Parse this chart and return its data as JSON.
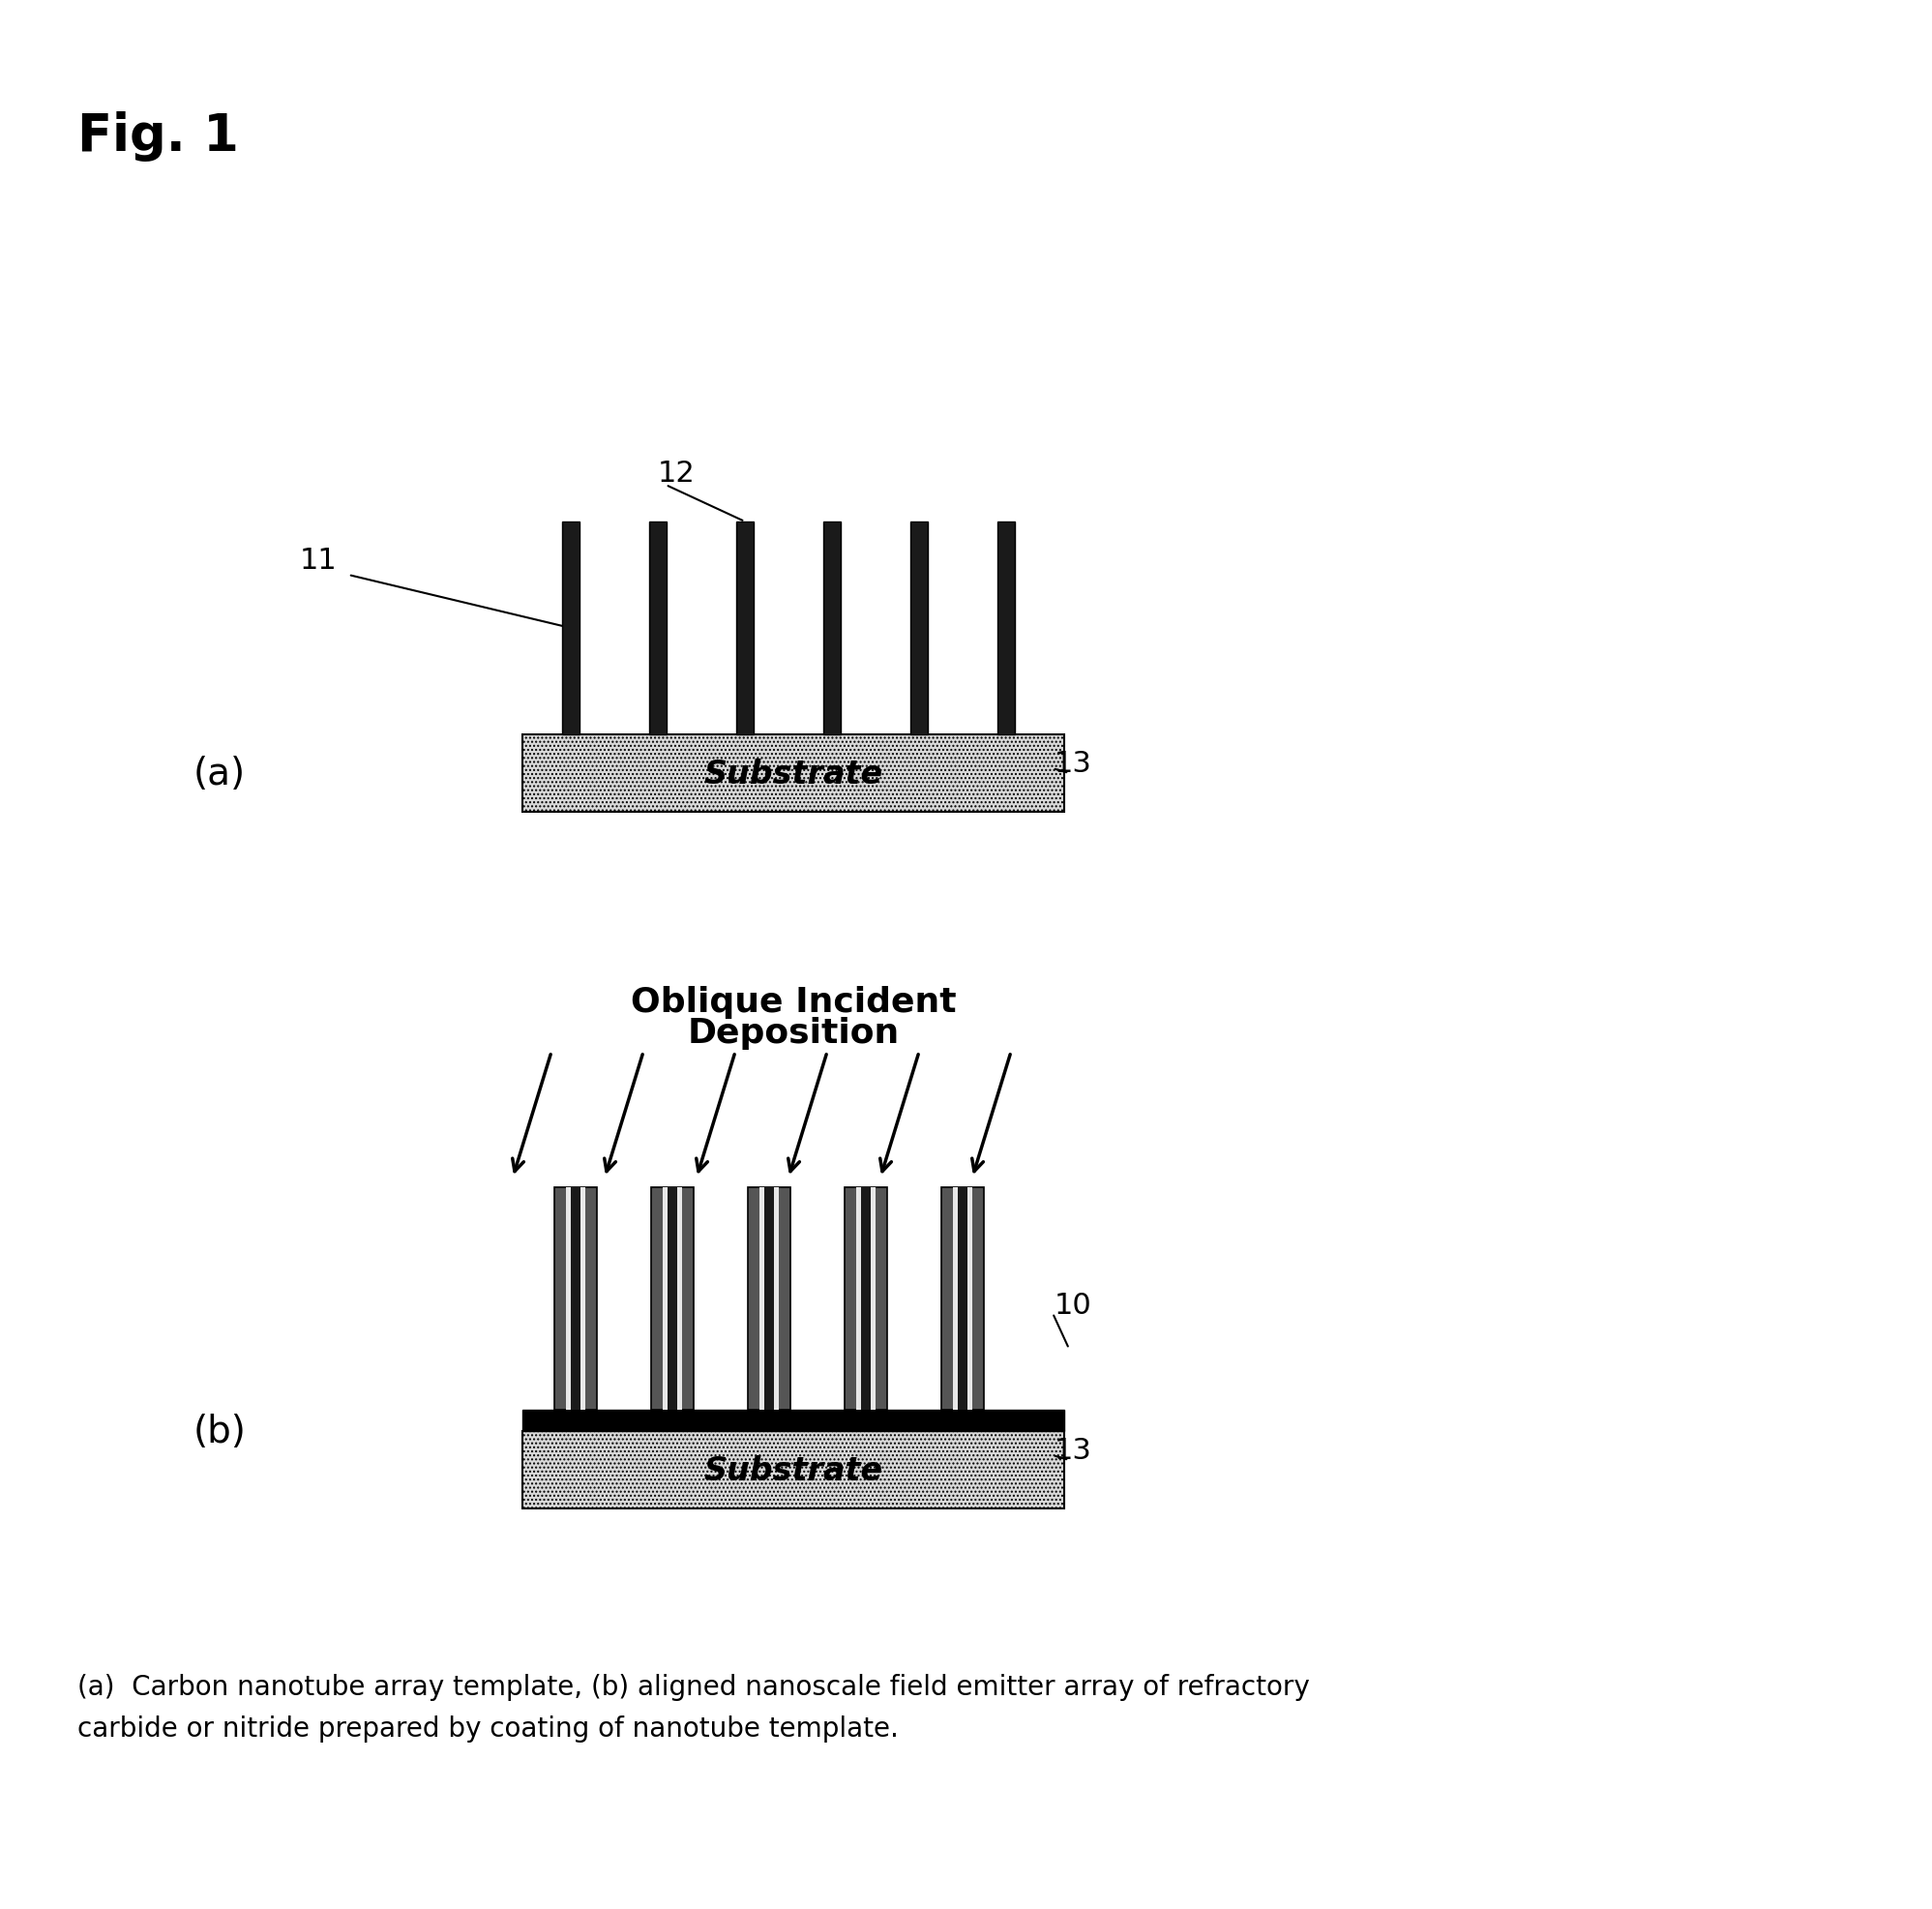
{
  "fig_title": "Fig. 1",
  "fig_label_a": "(a)",
  "fig_label_b": "(b)",
  "caption": "(a)  Carbon nanotube array template, (b) aligned nanoscale field emitter array of refractory\ncarbide or nitride prepared by coating of nanotube template.",
  "substrate_label": "Substrate",
  "oblique_label_line1": "Oblique Incident",
  "oblique_label_line2": "Deposition",
  "label_11": "11",
  "label_12": "12",
  "label_13_a": "13",
  "label_10": "10",
  "label_13_b": "13",
  "background_color": "#ffffff",
  "substrate_hatch": "....",
  "substrate_facecolor": "#d8d8d8",
  "nanotube_color": "#1a1a1a",
  "coating_outer_color": "#555555",
  "coating_inner_color": "#cccccc",
  "black": "#000000"
}
